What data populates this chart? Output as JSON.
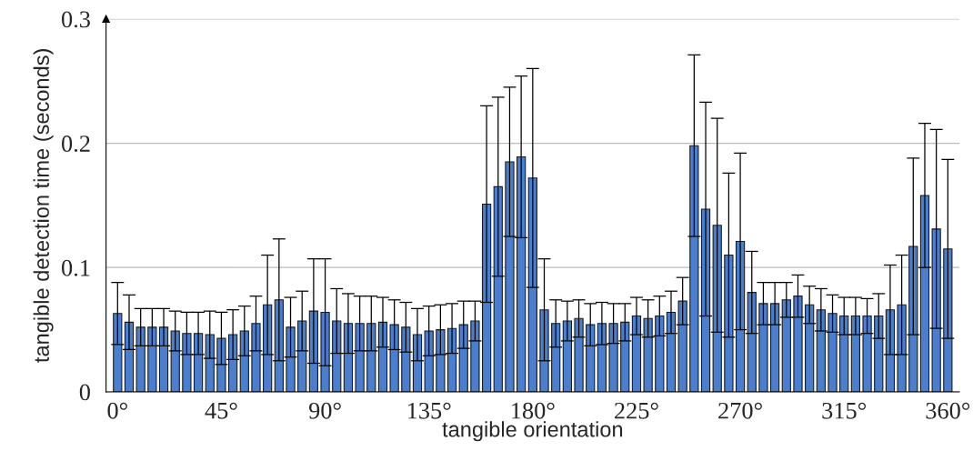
{
  "chart_data": {
    "type": "bar",
    "xlabel": "tangible orientation",
    "ylabel": "tangible detection time (seconds)",
    "x": [
      0,
      5,
      10,
      15,
      20,
      25,
      30,
      35,
      40,
      45,
      50,
      55,
      60,
      65,
      70,
      75,
      80,
      85,
      90,
      95,
      100,
      105,
      110,
      115,
      120,
      125,
      130,
      135,
      140,
      145,
      150,
      155,
      160,
      165,
      170,
      175,
      180,
      185,
      190,
      195,
      200,
      205,
      210,
      215,
      220,
      225,
      230,
      235,
      240,
      245,
      250,
      255,
      260,
      265,
      270,
      275,
      280,
      285,
      290,
      295,
      300,
      305,
      310,
      315,
      320,
      325,
      330,
      335,
      340,
      345,
      350,
      355,
      360
    ],
    "values": [
      0.063,
      0.056,
      0.052,
      0.052,
      0.052,
      0.049,
      0.047,
      0.047,
      0.046,
      0.043,
      0.046,
      0.049,
      0.055,
      0.07,
      0.074,
      0.052,
      0.057,
      0.065,
      0.064,
      0.057,
      0.055,
      0.055,
      0.055,
      0.056,
      0.054,
      0.052,
      0.046,
      0.049,
      0.05,
      0.051,
      0.054,
      0.057,
      0.151,
      0.165,
      0.185,
      0.189,
      0.172,
      0.066,
      0.055,
      0.057,
      0.059,
      0.054,
      0.055,
      0.055,
      0.056,
      0.061,
      0.059,
      0.061,
      0.064,
      0.073,
      0.198,
      0.147,
      0.134,
      0.11,
      0.121,
      0.08,
      0.071,
      0.071,
      0.074,
      0.077,
      0.07,
      0.066,
      0.063,
      0.061,
      0.061,
      0.061,
      0.061,
      0.066,
      0.07,
      0.117,
      0.158,
      0.131,
      0.115
    ],
    "errors": [
      0.025,
      0.022,
      0.015,
      0.015,
      0.015,
      0.016,
      0.017,
      0.017,
      0.019,
      0.021,
      0.02,
      0.02,
      0.022,
      0.04,
      0.049,
      0.024,
      0.024,
      0.042,
      0.043,
      0.026,
      0.024,
      0.022,
      0.022,
      0.02,
      0.02,
      0.02,
      0.021,
      0.02,
      0.02,
      0.02,
      0.019,
      0.016,
      0.079,
      0.072,
      0.06,
      0.065,
      0.088,
      0.041,
      0.019,
      0.016,
      0.015,
      0.017,
      0.017,
      0.016,
      0.015,
      0.015,
      0.015,
      0.016,
      0.017,
      0.019,
      0.073,
      0.086,
      0.086,
      0.066,
      0.071,
      0.033,
      0.017,
      0.017,
      0.014,
      0.017,
      0.015,
      0.017,
      0.015,
      0.015,
      0.015,
      0.014,
      0.018,
      0.036,
      0.04,
      0.071,
      0.058,
      0.08,
      0.072
    ],
    "color": "#4a7fcf",
    "xlim": [
      -5,
      365
    ],
    "xticks": [
      {
        "value": 0,
        "label": "0°"
      },
      {
        "value": 45,
        "label": "45°"
      },
      {
        "value": 90,
        "label": "90°"
      },
      {
        "value": 135,
        "label": "135°"
      },
      {
        "value": 180,
        "label": "180°"
      },
      {
        "value": 225,
        "label": "225°"
      },
      {
        "value": 270,
        "label": "270°"
      },
      {
        "value": 315,
        "label": "315°"
      },
      {
        "value": 360,
        "label": "360°"
      }
    ],
    "ylim": [
      0,
      0.3
    ],
    "yticks": [
      0,
      0.1,
      0.2,
      0.3
    ],
    "grid": "y",
    "legend": false
  }
}
